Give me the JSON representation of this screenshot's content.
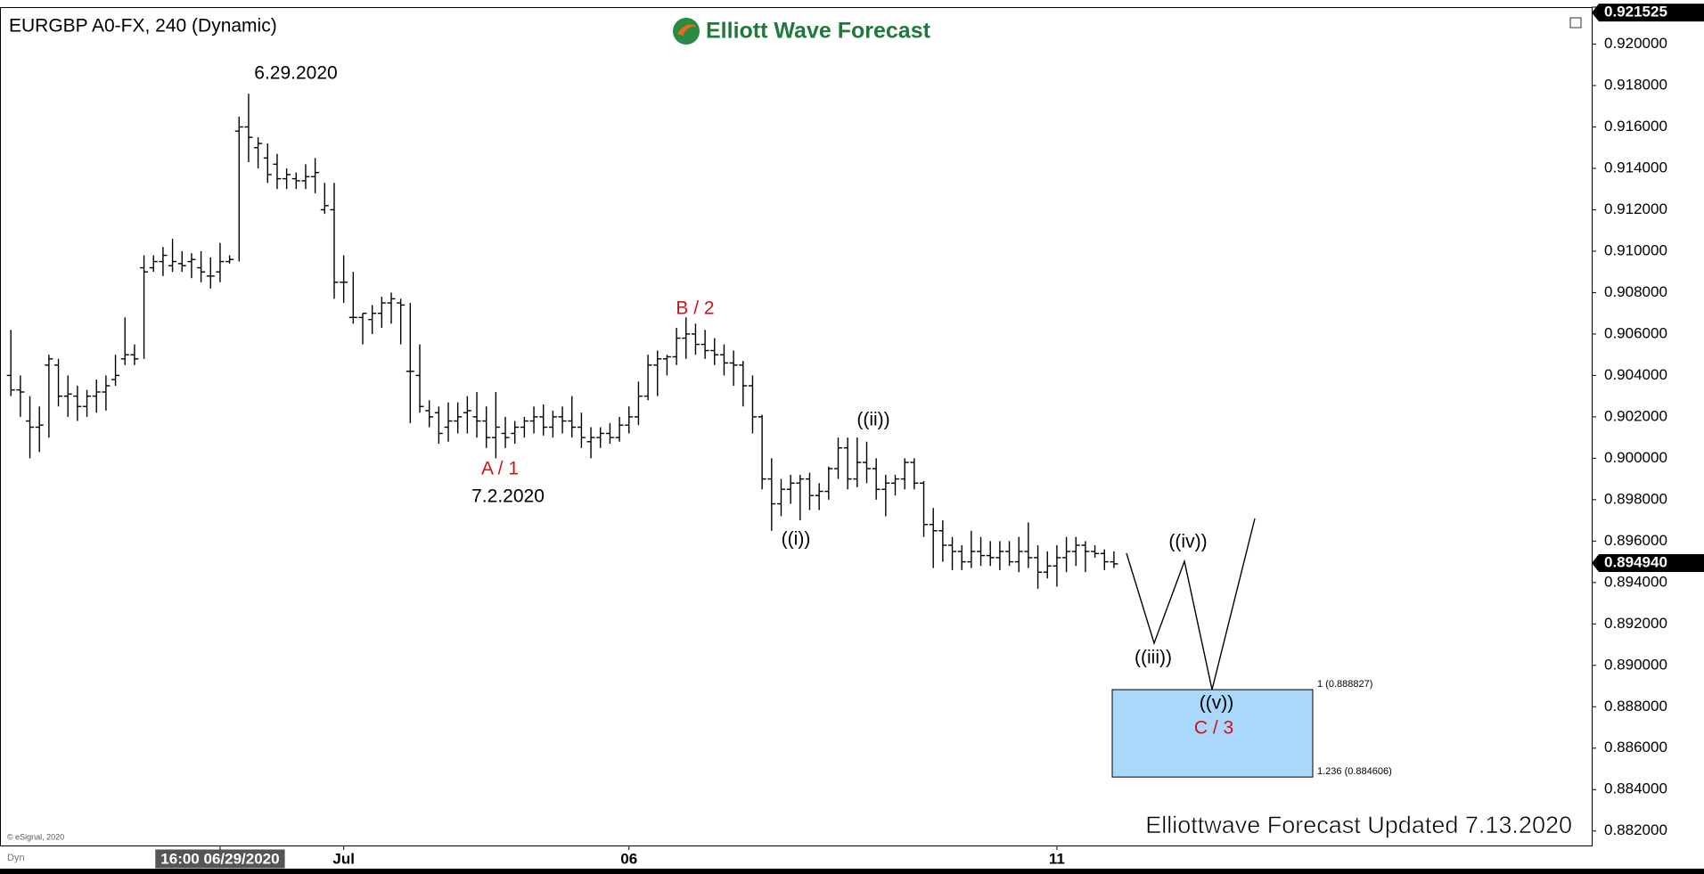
{
  "chart_data": {
    "type": "ohlc",
    "title": "EURGBP A0-FX, 240 (Dynamic)",
    "brand": "Elliott Wave Forecast",
    "footer": "Elliottwave Forecast Updated 7.13.2020",
    "copyright": "© eSignal, 2020",
    "corner_label": "Dyn",
    "annotations": {
      "high_date": "6.29.2020",
      "a": "A / 1",
      "a_date": "7.2.2020",
      "b": "B / 2",
      "w1": "((i))",
      "w2": "((ii))",
      "w3": "((iii))",
      "w4": "((iv))",
      "w5": "((v))",
      "c": "C / 3"
    },
    "target_box": {
      "color": "#a9d8fb",
      "upper": {
        "value": 0.888827,
        "label": "1 (0.888827)"
      },
      "lower": {
        "value": 0.884606,
        "label": "1.236 (0.884606)"
      }
    },
    "last_price": {
      "value": 0.89494,
      "label": "0.894940"
    },
    "top_price": {
      "value": 0.921525,
      "label": "0.921525"
    },
    "ylim": [
      0.8813,
      0.9217
    ],
    "yticks": [
      {
        "value": 0.882,
        "label": "0.882000"
      },
      {
        "value": 0.884,
        "label": "0.884000"
      },
      {
        "value": 0.886,
        "label": "0.886000"
      },
      {
        "value": 0.888,
        "label": "0.888000"
      },
      {
        "value": 0.89,
        "label": "0.890000"
      },
      {
        "value": 0.892,
        "label": "0.892000"
      },
      {
        "value": 0.894,
        "label": "0.894000"
      },
      {
        "value": 0.896,
        "label": "0.896000"
      },
      {
        "value": 0.898,
        "label": "0.898000"
      },
      {
        "value": 0.9,
        "label": "0.900000"
      },
      {
        "value": 0.902,
        "label": "0.902000"
      },
      {
        "value": 0.904,
        "label": "0.904000"
      },
      {
        "value": 0.906,
        "label": "0.906000"
      },
      {
        "value": 0.908,
        "label": "0.908000"
      },
      {
        "value": 0.91,
        "label": "0.910000"
      },
      {
        "value": 0.912,
        "label": "0.912000"
      },
      {
        "value": 0.914,
        "label": "0.914000"
      },
      {
        "value": 0.916,
        "label": "0.916000"
      },
      {
        "value": 0.918,
        "label": "0.918000"
      },
      {
        "value": 0.92,
        "label": "0.920000"
      }
    ],
    "categories": [
      null,
      null,
      null,
      null,
      null,
      null,
      null,
      null,
      null,
      null,
      null,
      null,
      null,
      null,
      null,
      null,
      null,
      null,
      null,
      null,
      null,
      null,
      "16:00 06/29/2020",
      null,
      null,
      null,
      null,
      null,
      null,
      null,
      null,
      null,
      null,
      null,
      null,
      "Jul",
      null,
      null,
      null,
      null,
      null,
      null,
      null,
      null,
      null,
      null,
      null,
      null,
      null,
      null,
      null,
      null,
      null,
      null,
      null,
      null,
      null,
      null,
      null,
      null,
      null,
      null,
      null,
      null,
      null,
      "06",
      null,
      null,
      null,
      null,
      null,
      null,
      null,
      null,
      null,
      null,
      null,
      null,
      null,
      null,
      null,
      null,
      null,
      null,
      null,
      null,
      null,
      null,
      null,
      null,
      null,
      null,
      null,
      null,
      null,
      null,
      null,
      null,
      null,
      null,
      null,
      null,
      null,
      null,
      null,
      null,
      null,
      null,
      null,
      null,
      "11",
      null,
      null,
      null,
      null,
      null,
      null
    ],
    "open": [
      0.904,
      0.9033,
      0.9018,
      0.9015,
      0.9045,
      0.9045,
      0.903,
      0.903,
      0.9025,
      0.903,
      0.9032,
      0.9038,
      0.9048,
      0.905,
      0.9092,
      0.9092,
      0.9095,
      0.9093,
      0.9094,
      0.9095,
      0.9092,
      0.9088,
      0.909,
      0.9095,
      0.9158,
      0.916,
      0.915,
      0.9145,
      0.9142,
      0.9135,
      0.9135,
      0.9134,
      0.9136,
      0.912,
      0.912,
      0.9085,
      0.9068,
      0.9068,
      0.9067,
      0.907,
      0.9075,
      0.9075,
      0.9042,
      0.904,
      0.9023,
      0.9022,
      0.9015,
      0.9018,
      0.9022,
      0.902,
      0.9018,
      0.901,
      0.9012,
      0.9012,
      0.9015,
      0.9018,
      0.902,
      0.9015,
      0.902,
      0.9018,
      0.9015,
      0.9008,
      0.901,
      0.9012,
      0.901,
      0.9016,
      0.902,
      0.903,
      0.9045,
      0.9048,
      0.9049,
      0.9058,
      0.906,
      0.9055,
      0.9052,
      0.905,
      0.9046,
      0.9045,
      0.9035,
      0.902,
      0.899,
      0.8978,
      0.8985,
      0.8988,
      0.899,
      0.8982,
      0.8984,
      0.8995,
      0.9005,
      0.899,
      0.8998,
      0.8995,
      0.8985,
      0.8988,
      0.899,
      0.8998,
      0.8988,
      0.8968,
      0.8965,
      0.8958,
      0.8955,
      0.895,
      0.8955,
      0.8953,
      0.8952,
      0.8955,
      0.895,
      0.8955,
      0.8952,
      0.8945,
      0.8948,
      0.8952,
      0.8955,
      0.8958,
      0.8955,
      0.8954,
      0.895
    ],
    "high": [
      0.9062,
      0.904,
      0.903,
      0.9025,
      0.905,
      0.9048,
      0.904,
      0.9035,
      0.9033,
      0.9038,
      0.904,
      0.905,
      0.9068,
      0.9055,
      0.9098,
      0.9098,
      0.9102,
      0.9106,
      0.91,
      0.9099,
      0.91,
      0.9097,
      0.9104,
      0.9098,
      0.9165,
      0.9176,
      0.9155,
      0.9152,
      0.9147,
      0.914,
      0.9138,
      0.9142,
      0.9145,
      0.9133,
      0.9133,
      0.9098,
      0.909,
      0.907,
      0.9074,
      0.9078,
      0.908,
      0.9077,
      0.9075,
      0.9055,
      0.9028,
      0.9025,
      0.9027,
      0.9027,
      0.903,
      0.9032,
      0.9025,
      0.9032,
      0.902,
      0.9018,
      0.902,
      0.9025,
      0.9026,
      0.9023,
      0.9025,
      0.903,
      0.9022,
      0.9015,
      0.9015,
      0.9017,
      0.902,
      0.9025,
      0.9037,
      0.905,
      0.9052,
      0.905,
      0.9063,
      0.9068,
      0.9065,
      0.9062,
      0.9058,
      0.9055,
      0.9052,
      0.9047,
      0.904,
      0.9021,
      0.9,
      0.899,
      0.8992,
      0.8992,
      0.8993,
      0.8988,
      0.8996,
      0.901,
      0.901,
      0.901,
      0.9008,
      0.9,
      0.8992,
      0.8992,
      0.9,
      0.9,
      0.8989,
      0.8976,
      0.897,
      0.8962,
      0.8958,
      0.8965,
      0.8962,
      0.896,
      0.896,
      0.896,
      0.8962,
      0.8969,
      0.8958,
      0.8955,
      0.8958,
      0.8962,
      0.8962,
      0.896,
      0.8958,
      0.8956,
      0.8955
    ],
    "low": [
      0.903,
      0.902,
      0.9,
      0.9003,
      0.901,
      0.9025,
      0.902,
      0.9018,
      0.902,
      0.9022,
      0.9023,
      0.9035,
      0.9045,
      0.9045,
      0.9048,
      0.909,
      0.9088,
      0.909,
      0.909,
      0.9087,
      0.9085,
      0.9082,
      0.9085,
      0.9094,
      0.9095,
      0.9143,
      0.914,
      0.9133,
      0.913,
      0.913,
      0.913,
      0.913,
      0.9128,
      0.9118,
      0.9077,
      0.9075,
      0.9065,
      0.9055,
      0.906,
      0.9063,
      0.9065,
      0.9055,
      0.9017,
      0.9022,
      0.9015,
      0.9007,
      0.9008,
      0.9012,
      0.9012,
      0.901,
      0.9005,
      0.9,
      0.9005,
      0.9007,
      0.901,
      0.9012,
      0.9011,
      0.901,
      0.9012,
      0.901,
      0.9005,
      0.9,
      0.9005,
      0.9007,
      0.9008,
      0.9012,
      0.9016,
      0.9028,
      0.903,
      0.904,
      0.9045,
      0.9048,
      0.905,
      0.9048,
      0.9045,
      0.904,
      0.9035,
      0.9025,
      0.9012,
      0.8985,
      0.8965,
      0.8972,
      0.8978,
      0.897,
      0.8975,
      0.8975,
      0.898,
      0.899,
      0.8985,
      0.8986,
      0.8988,
      0.898,
      0.8972,
      0.8982,
      0.8985,
      0.8985,
      0.8962,
      0.8947,
      0.895,
      0.8946,
      0.8946,
      0.8947,
      0.8948,
      0.8948,
      0.8946,
      0.8948,
      0.8945,
      0.8947,
      0.8937,
      0.8942,
      0.8938,
      0.8945,
      0.8948,
      0.8945,
      0.8952,
      0.8946,
      0.8947
    ],
    "close": [
      0.9033,
      0.9032,
      0.9015,
      0.9016,
      0.9048,
      0.903,
      0.9031,
      0.9025,
      0.903,
      0.9032,
      0.9035,
      0.904,
      0.905,
      0.9048,
      0.909,
      0.9095,
      0.9098,
      0.9095,
      0.9093,
      0.9096,
      0.909,
      0.9088,
      0.9095,
      0.9096,
      0.916,
      0.9155,
      0.9152,
      0.9137,
      0.9135,
      0.9137,
      0.9134,
      0.9136,
      0.9138,
      0.9122,
      0.9085,
      0.9085,
      0.9068,
      0.907,
      0.907,
      0.9075,
      0.9077,
      0.9074,
      0.9042,
      0.9025,
      0.902,
      0.9012,
      0.9018,
      0.902,
      0.9023,
      0.9018,
      0.901,
      0.9015,
      0.901,
      0.9015,
      0.9018,
      0.902,
      0.9015,
      0.902,
      0.9018,
      0.9015,
      0.901,
      0.901,
      0.9012,
      0.901,
      0.9016,
      0.902,
      0.903,
      0.9045,
      0.9048,
      0.9049,
      0.9058,
      0.906,
      0.9055,
      0.9052,
      0.905,
      0.9046,
      0.9045,
      0.9035,
      0.902,
      0.899,
      0.8978,
      0.8985,
      0.8988,
      0.899,
      0.8982,
      0.8984,
      0.8995,
      0.9005,
      0.899,
      0.8998,
      0.8995,
      0.8985,
      0.8988,
      0.899,
      0.8998,
      0.8988,
      0.8968,
      0.8965,
      0.8958,
      0.8955,
      0.895,
      0.8955,
      0.8953,
      0.8952,
      0.8955,
      0.895,
      0.8955,
      0.8952,
      0.8945,
      0.8948,
      0.8952,
      0.8955,
      0.8958,
      0.8955,
      0.8954,
      0.895,
      0.8949
    ],
    "color": "#000000"
  }
}
